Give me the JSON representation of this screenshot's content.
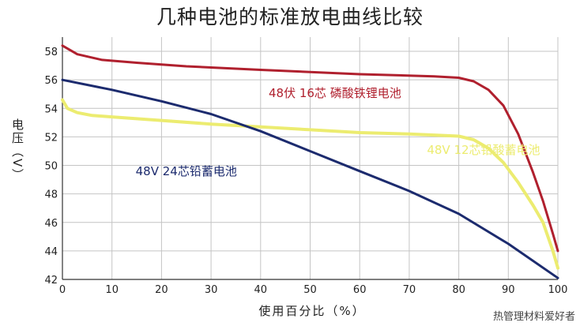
{
  "chart_data": {
    "type": "line",
    "title": "几种电池的标准放电曲线比较",
    "xlabel": "使用百分比（%）",
    "ylabel": "电压（V）",
    "xlim": [
      0,
      100
    ],
    "ylim": [
      42,
      59
    ],
    "xticks": [
      0,
      10,
      20,
      30,
      40,
      50,
      60,
      70,
      80,
      90,
      100
    ],
    "yticks": [
      42,
      44,
      46,
      48,
      50,
      52,
      54,
      56,
      58
    ],
    "grid": true,
    "series": [
      {
        "name": "48伏 16芯 磷酸铁锂电池",
        "color": "#b0202e",
        "label_at": [
          55,
          54.8
        ],
        "x": [
          0,
          3,
          8,
          15,
          25,
          40,
          60,
          75,
          80,
          83,
          86,
          89,
          92,
          95,
          97,
          99,
          100
        ],
        "y": [
          58.4,
          57.8,
          57.4,
          57.2,
          56.95,
          56.7,
          56.4,
          56.25,
          56.15,
          55.9,
          55.3,
          54.2,
          52.2,
          49.5,
          47.5,
          45.2,
          44.0
        ]
      },
      {
        "name": "48V 12芯铅酸蓄电池",
        "color": "#ecec70",
        "label_at": [
          85,
          50.8
        ],
        "x": [
          0,
          1,
          3,
          6,
          10,
          20,
          30,
          40,
          50,
          60,
          70,
          80,
          83,
          86,
          89,
          92,
          95,
          97,
          99,
          100
        ],
        "y": [
          54.6,
          54.0,
          53.7,
          53.5,
          53.4,
          53.15,
          52.9,
          52.7,
          52.5,
          52.3,
          52.2,
          52.05,
          51.8,
          51.2,
          50.2,
          48.8,
          47.2,
          46.0,
          44.0,
          42.8
        ]
      },
      {
        "name": "48V 24芯铅蓄电池",
        "color": "#1c2b6e",
        "label_at": [
          25,
          49.3
        ],
        "x": [
          0,
          10,
          20,
          30,
          40,
          50,
          60,
          70,
          80,
          90,
          100
        ],
        "y": [
          56.0,
          55.3,
          54.5,
          53.6,
          52.4,
          51.0,
          49.6,
          48.2,
          46.6,
          44.5,
          42.1
        ]
      }
    ]
  },
  "watermark": "热管理材料爱好者"
}
